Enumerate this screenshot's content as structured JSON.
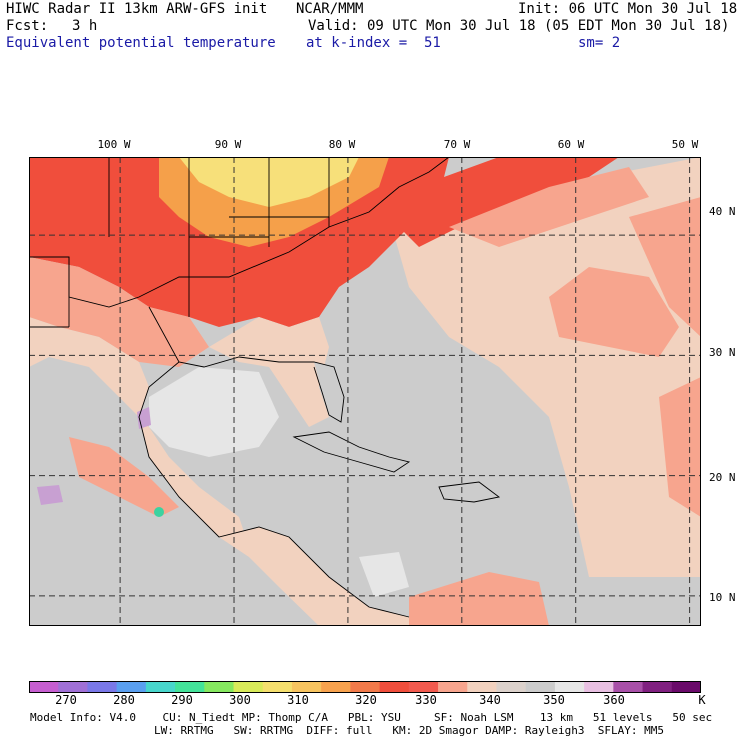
{
  "header": {
    "title": "HIWC Radar II 13km ARW-GFS init",
    "org": "NCAR/MMM",
    "init": "Init: 06 UTC Mon 30 Jul 18",
    "fcst_label": "Fcst:",
    "fcst_value": "3 h",
    "valid": "Valid: 09 UTC Mon 30 Jul 18 (05 EDT Mon 30 Jul 18)",
    "field": "Equivalent potential temperature",
    "level": "at k-index =  51",
    "smoothing": "sm= 2"
  },
  "map": {
    "lon_range": [
      -108,
      -49
    ],
    "lat_range": [
      7.5,
      46.5
    ],
    "lon_ticks": [
      -100,
      -90,
      -80,
      -70,
      -60,
      -50
    ],
    "lat_ticks": [
      10,
      20,
      30,
      40
    ],
    "lon_labels": [
      "100 W",
      "90 W",
      "80 W",
      "70 W",
      "60 W",
      "50 W"
    ],
    "lat_labels": [
      "10 N",
      "20 N",
      "30 N",
      "40 N"
    ],
    "grid": "dashed",
    "colors": {
      "ocean_gray": "#cccccc",
      "light_gray": "#e6e6e6",
      "tan": "#f2d2bf",
      "salmon": "#f7a58e",
      "red_orange": "#f04e3c",
      "orange": "#f5a04a",
      "yellow": "#f7e07a",
      "purple": "#c8a0d2",
      "teal": "#3cd2a0",
      "border": "#000000"
    }
  },
  "colorbar": {
    "unit": "K",
    "levels": [
      "270",
      "280",
      "290",
      "300",
      "310",
      "320",
      "330",
      "340",
      "350",
      "360"
    ],
    "colors": [
      "#c65ed0",
      "#a070d6",
      "#7a78e8",
      "#5a9ff0",
      "#48d6cc",
      "#44e39a",
      "#86e860",
      "#d8ea5a",
      "#f5df6e",
      "#f7c460",
      "#f7a24e",
      "#f27a4a",
      "#f04e3c",
      "#f25a4e",
      "#f7a58e",
      "#f2d2bf",
      "#dcd2cc",
      "#cccccc",
      "#e6e6e6",
      "#e8c0e2",
      "#a850a8",
      "#802080",
      "#6a0a6a"
    ]
  },
  "footer": {
    "line1": "Model Info: V4.0    CU: N_Tiedt MP: Thomp C/A   PBL: YSU     SF: Noah LSM    13 km   51 levels   50 sec",
    "line2": "LW: RRTMG   SW: RRTMG  DIFF: full   KM: 2D Smagor DAMP: Rayleigh3  SFLAY: MM5"
  }
}
